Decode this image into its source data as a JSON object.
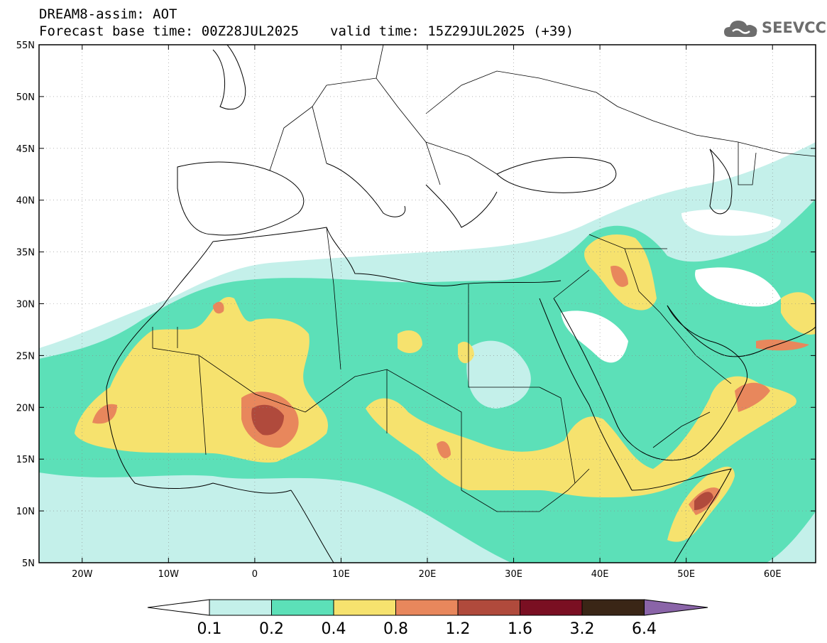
{
  "header": {
    "title": "DREAM8-assim: AOT",
    "base_time": "Forecast base time: 00Z28JUL2025",
    "valid_time": "valid time: 15Z29JUL2025 (+39)"
  },
  "logo": {
    "text": "SEEVCCC",
    "icon": "cloud-icon"
  },
  "map": {
    "lon_range": [
      -25,
      65
    ],
    "lat_range": [
      5,
      55
    ],
    "lat_ticks": [
      "5N",
      "10N",
      "15N",
      "20N",
      "25N",
      "30N",
      "35N",
      "40N",
      "45N",
      "50N",
      "55N"
    ],
    "lon_ticks": [
      "20W",
      "10W",
      "0",
      "10E",
      "20E",
      "30E",
      "40E",
      "50E",
      "60E"
    ]
  },
  "colorbar": {
    "labels": [
      "0.1",
      "0.2",
      "0.4",
      "0.8",
      "1.2",
      "1.6",
      "3.2",
      "6.4"
    ],
    "colors": [
      "#ffffff",
      "#c4f0ea",
      "#5ce0b8",
      "#f6e26e",
      "#e8875c",
      "#b04a3c",
      "#7a0f22",
      "#3a2616",
      "#8a64a8"
    ]
  }
}
